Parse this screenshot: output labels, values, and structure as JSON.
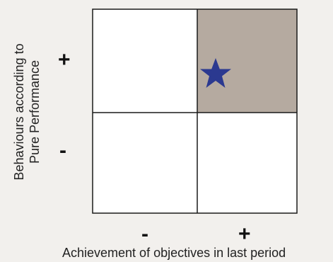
{
  "axes": {
    "y_label_line1": "Behaviours according to",
    "y_label_line2": "Pure Performance",
    "x_label": "Achievement of objectives in last period",
    "y_plus": "+",
    "y_minus": "-",
    "x_minus": "-",
    "x_plus": "+"
  },
  "quadrants": [
    {
      "position": "top-left",
      "fill": "#ffffff"
    },
    {
      "position": "top-right",
      "fill": "#b5aaa0",
      "marker": "star-icon"
    },
    {
      "position": "bottom-left",
      "fill": "#ffffff"
    },
    {
      "position": "bottom-right",
      "fill": "#ffffff"
    }
  ],
  "colors": {
    "highlight": "#b5aaa0",
    "star": "#2b3990",
    "border": "#1a1a1a",
    "background": "#f2f0ed"
  }
}
